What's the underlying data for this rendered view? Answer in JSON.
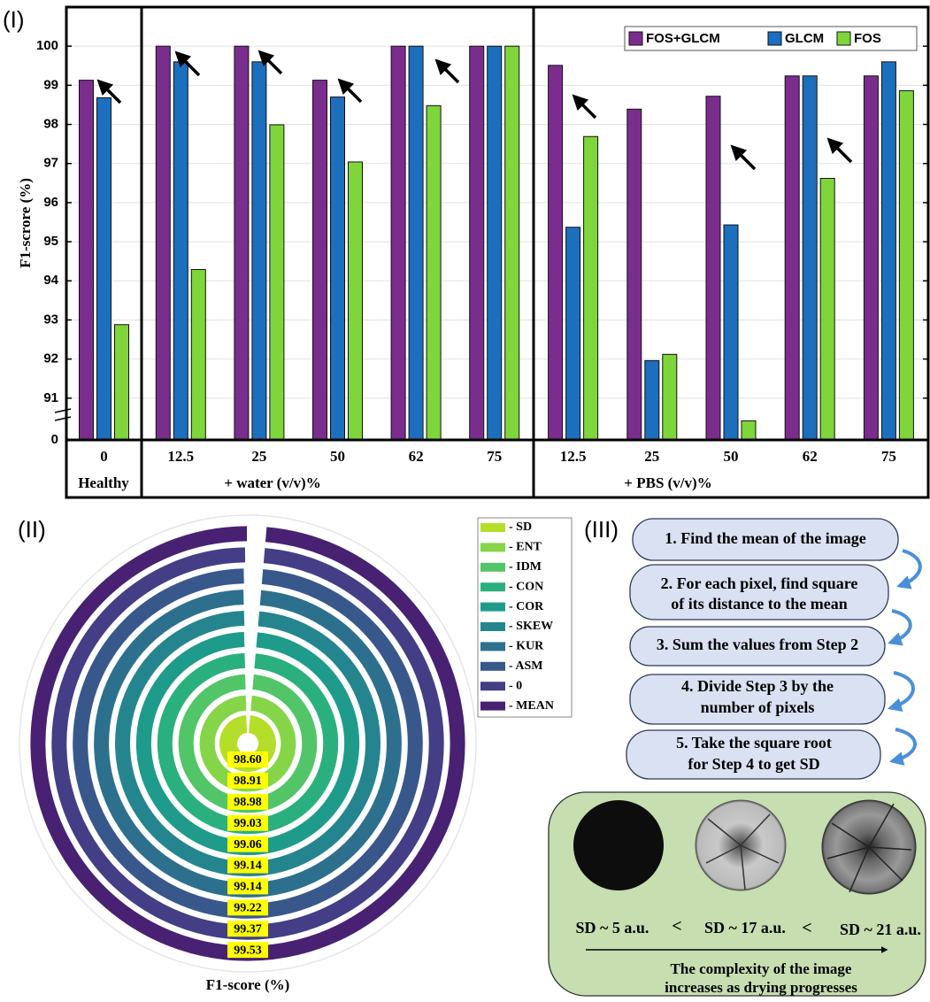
{
  "panel_labels": [
    "(I)",
    "(II)",
    "(III)"
  ],
  "chart_data": [
    {
      "type": "bar",
      "ylabel": "F1-scrore (%)",
      "groups": [
        {
          "name": "Healthy",
          "categories": [
            "0"
          ]
        },
        {
          "name": "+ water (v/v)%",
          "categories": [
            "12.5",
            "25",
            "50",
            "62",
            "75"
          ]
        },
        {
          "name": "+ PBS (v/v)%",
          "categories": [
            "12.5",
            "25",
            "50",
            "62",
            "75"
          ]
        }
      ],
      "series": [
        {
          "name": "FOS+GLCM",
          "color": "#7b2d8e",
          "values": [
            99.13,
            100,
            100,
            99.13,
            100,
            100,
            99.51,
            98.39,
            98.72,
            99.24,
            99.24
          ]
        },
        {
          "name": "GLCM",
          "color": "#1c6fbd",
          "values": [
            98.68,
            99.6,
            99.6,
            98.7,
            100,
            100,
            95.37,
            91.96,
            95.43,
            99.24,
            99.6
          ]
        },
        {
          "name": "FOS",
          "color": "#7ed63a",
          "values": [
            92.88,
            94.29,
            97.99,
            97.04,
            98.48,
            100,
            97.69,
            92.12,
            90.42,
            96.62,
            98.86
          ]
        }
      ],
      "ylim": [
        0,
        101
      ],
      "ybreak": 90,
      "yticks": [
        0,
        91,
        92,
        93,
        94,
        95,
        96,
        97,
        98,
        99,
        100
      ],
      "grid": true,
      "legend": "top-right"
    },
    {
      "type": "radial_bar",
      "xlabel": "F1-score (%)",
      "categories": [
        "- SD",
        "- ENT",
        "- IDM",
        "- CON",
        "- COR",
        "- SKEW",
        "- KUR",
        "- ASM",
        "- 0",
        "- MEAN"
      ],
      "values": [
        98.6,
        98.91,
        98.98,
        99.03,
        99.06,
        99.14,
        99.14,
        99.22,
        99.37,
        99.53
      ],
      "value_labels": [
        "98.60",
        "98.91",
        "98.98",
        "99.03",
        "99.06",
        "99.14",
        "99.14",
        "99.22",
        "99.37",
        "99.53"
      ],
      "colors": [
        "#b5de2b",
        "#86d549",
        "#52c569",
        "#2ab07f",
        "#1e9b8a",
        "#25858e",
        "#2d708e",
        "#38588c",
        "#433e85",
        "#482173"
      ],
      "xlim": [
        0,
        101
      ]
    }
  ],
  "steps": [
    {
      "lines": [
        "1. Find the mean of the image"
      ]
    },
    {
      "lines": [
        "2. For each pixel, find square",
        "of its distance to the mean"
      ]
    },
    {
      "lines": [
        "3. Sum the values from Step 2"
      ]
    },
    {
      "lines": [
        "4. Divide Step 3 by the",
        "number of pixels"
      ]
    },
    {
      "lines": [
        "5. Take the square root",
        "for Step 4 to get SD"
      ]
    }
  ],
  "illustration": {
    "samples": [
      "SD ~ 5 a.u.",
      "SD ~ 17 a.u.",
      "SD ~ 21 a.u."
    ],
    "relations": [
      "<",
      "<"
    ],
    "caption": [
      "The complexity of the image",
      "increases as drying progresses"
    ]
  }
}
